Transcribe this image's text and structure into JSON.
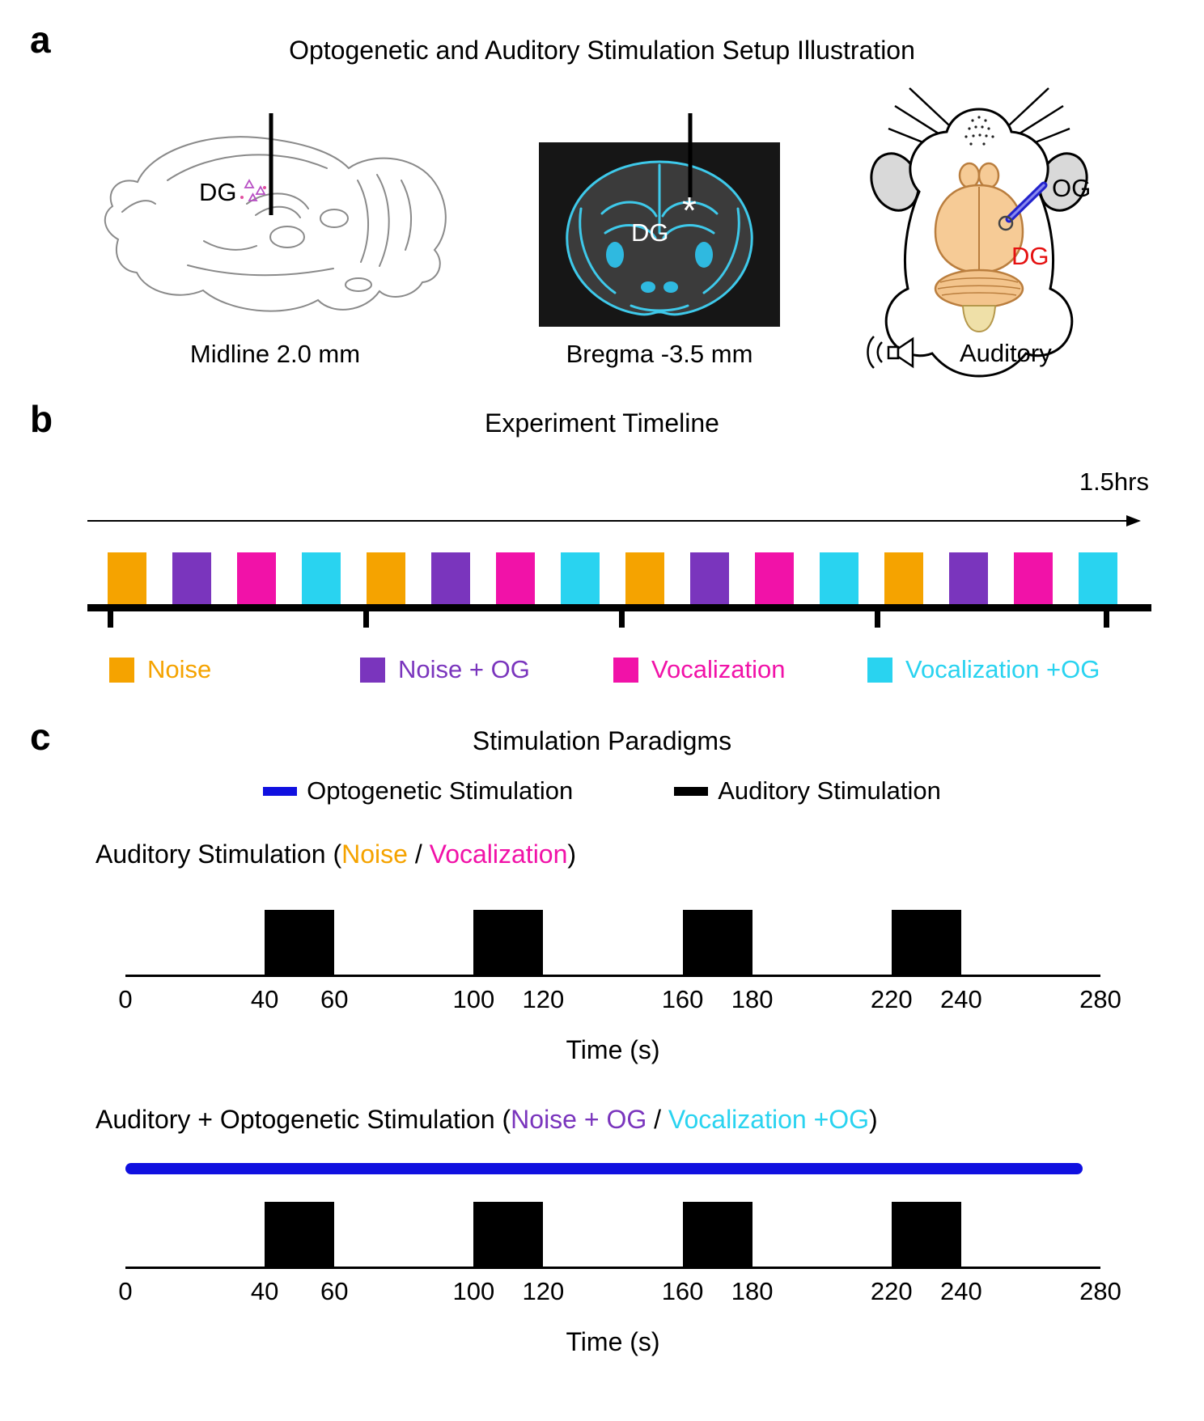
{
  "figure": {
    "panel_a": {
      "label": "a",
      "title": "Optogenetic and Auditory Stimulation Setup Illustration",
      "sagittal": {
        "dg": "DG",
        "caption": "Midline 2.0 mm"
      },
      "coronal": {
        "dg": "DG",
        "asterisk": "*",
        "caption": "Bregma -3.5 mm"
      },
      "mouse": {
        "og": "OG",
        "dg": "DG",
        "auditory": "Auditory"
      }
    },
    "panel_b": {
      "label": "b",
      "title": "Experiment Timeline",
      "duration": "1.5hrs",
      "sequence": [
        "noise",
        "noise_og",
        "vocal",
        "vocal_og",
        "noise",
        "noise_og",
        "vocal",
        "vocal_og",
        "noise",
        "noise_og",
        "vocal",
        "vocal_og",
        "noise",
        "noise_og",
        "vocal",
        "vocal_og"
      ],
      "legend": [
        {
          "key": "noise",
          "label": "Noise",
          "color": "#F5A300"
        },
        {
          "key": "noise_og",
          "label": "Noise + OG",
          "color": "#7A35BD"
        },
        {
          "key": "vocal",
          "label": "Vocalization",
          "color": "#F112A8"
        },
        {
          "key": "vocal_og",
          "label": "Vocalization +OG",
          "color": "#29D3F0"
        }
      ]
    },
    "panel_c": {
      "label": "c",
      "title": "Stimulation Paradigms",
      "legend": [
        {
          "label": "Optogenetic Stimulation",
          "color": "#1010E0"
        },
        {
          "label": "Auditory Stimulation",
          "color": "#000000"
        }
      ],
      "auditory_heading": {
        "prefix": "Auditory Stimulation (",
        "noise": "Noise",
        "slash": " / ",
        "vocal": "Vocalization",
        "suffix": ")"
      },
      "combined_heading": {
        "prefix": "Auditory + Optogenetic Stimulation (",
        "noise_og": "Noise + OG",
        "slash": " / ",
        "vocal_og": "Vocalization +OG",
        "suffix": ")"
      }
    }
  },
  "chart_data": [
    {
      "type": "pulse-timeline",
      "title": "Auditory Stimulation (Noise / Vocalization)",
      "xlabel": "Time (s)",
      "xlim": [
        0,
        280
      ],
      "ticks": [
        0,
        40,
        60,
        100,
        120,
        160,
        180,
        220,
        240,
        280
      ],
      "pulses": [
        [
          40,
          60
        ],
        [
          100,
          120
        ],
        [
          160,
          180
        ],
        [
          220,
          240
        ]
      ],
      "pulse_color": "#000000"
    },
    {
      "type": "pulse-timeline",
      "title": "Auditory + Optogenetic Stimulation (Noise + OG / Vocalization +OG)",
      "xlabel": "Time (s)",
      "xlim": [
        0,
        280
      ],
      "ticks": [
        0,
        40,
        60,
        100,
        120,
        160,
        180,
        220,
        240,
        280
      ],
      "pulses": [
        [
          40,
          60
        ],
        [
          100,
          120
        ],
        [
          160,
          180
        ],
        [
          220,
          240
        ]
      ],
      "pulse_color": "#000000",
      "optogenetic_bar": {
        "start": 0,
        "end": 275,
        "color": "#1010E0"
      }
    }
  ]
}
